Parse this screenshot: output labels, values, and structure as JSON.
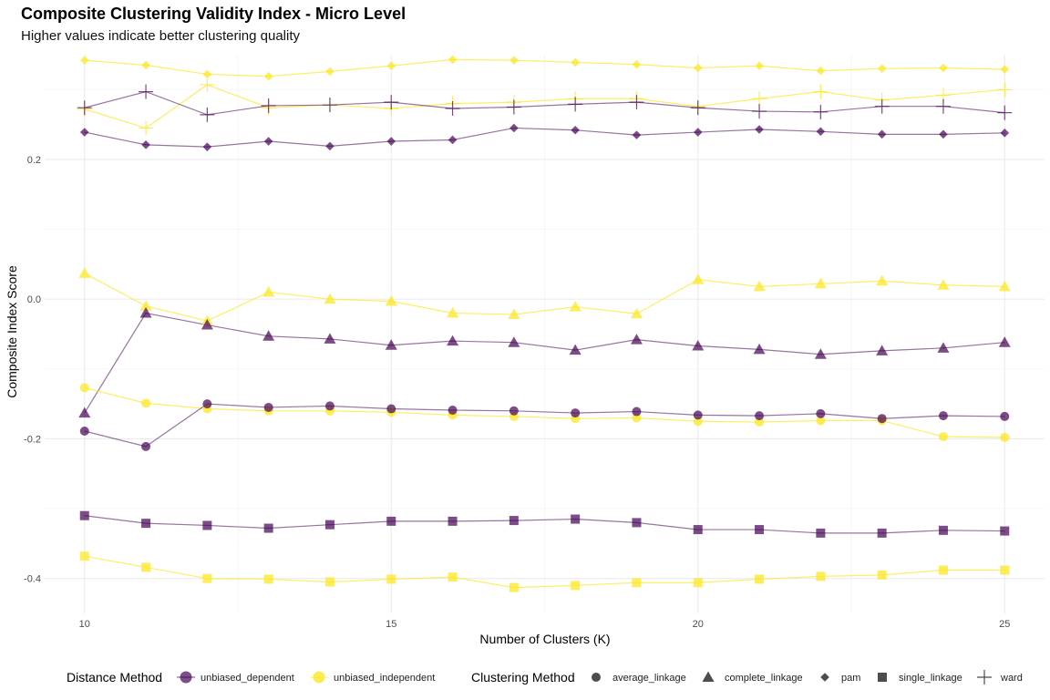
{
  "chart_data": {
    "type": "line",
    "title": "Composite Clustering Validity Index - Micro Level",
    "subtitle": "Higher values indicate better clustering quality",
    "xlabel": "Number of Clusters (K)",
    "ylabel": "Composite Index Score",
    "xlim": [
      9.35,
      25.65
    ],
    "ylim": [
      -0.45,
      0.35
    ],
    "x_ticks": [
      10,
      15,
      20,
      25
    ],
    "y_ticks": [
      -0.4,
      -0.2,
      0.0,
      0.2
    ],
    "y_tick_labels": [
      "-0.4",
      "-0.2",
      "0.0",
      "0.2"
    ],
    "grid": true,
    "legend_position": "bottom",
    "legends": {
      "distance": {
        "title": "Distance Method",
        "items": [
          {
            "label": "unbiased_dependent",
            "color": "#440154"
          },
          {
            "label": "unbiased_independent",
            "color": "#FDE725"
          }
        ]
      },
      "clustering": {
        "title": "Clustering Method",
        "items": [
          {
            "label": "average_linkage",
            "shape": "circle"
          },
          {
            "label": "complete_linkage",
            "shape": "triangle"
          },
          {
            "label": "pam",
            "shape": "diamond"
          },
          {
            "label": "single_linkage",
            "shape": "square"
          },
          {
            "label": "ward",
            "shape": "plus"
          }
        ]
      }
    },
    "x": [
      10,
      11,
      12,
      13,
      14,
      15,
      16,
      17,
      18,
      19,
      20,
      21,
      22,
      23,
      24,
      25
    ],
    "series": [
      {
        "distance": "unbiased_independent",
        "method": "pam",
        "color": "#FDE725",
        "shape": "diamond",
        "values": [
          0.342,
          0.335,
          0.322,
          0.319,
          0.326,
          0.334,
          0.343,
          0.342,
          0.339,
          0.336,
          0.331,
          0.334,
          0.327,
          0.33,
          0.331,
          0.329
        ]
      },
      {
        "distance": "unbiased_independent",
        "method": "ward",
        "color": "#FDE725",
        "shape": "plus",
        "values": [
          0.272,
          0.245,
          0.307,
          0.274,
          0.278,
          0.273,
          0.28,
          0.282,
          0.287,
          0.287,
          0.276,
          0.287,
          0.297,
          0.285,
          0.292,
          0.3
        ]
      },
      {
        "distance": "unbiased_dependent",
        "method": "ward",
        "color": "#440154",
        "shape": "plus",
        "values": [
          0.274,
          0.297,
          0.264,
          0.277,
          0.278,
          0.282,
          0.273,
          0.275,
          0.279,
          0.282,
          0.274,
          0.269,
          0.268,
          0.276,
          0.276,
          0.267
        ]
      },
      {
        "distance": "unbiased_dependent",
        "method": "pam",
        "color": "#440154",
        "shape": "diamond",
        "values": [
          0.239,
          0.221,
          0.218,
          0.226,
          0.219,
          0.226,
          0.228,
          0.245,
          0.242,
          0.235,
          0.239,
          0.243,
          0.24,
          0.236,
          0.236,
          0.238
        ]
      },
      {
        "distance": "unbiased_independent",
        "method": "complete_linkage",
        "color": "#FDE725",
        "shape": "triangle",
        "values": [
          0.037,
          -0.01,
          -0.031,
          0.01,
          0.0,
          -0.003,
          -0.02,
          -0.022,
          -0.011,
          -0.021,
          0.028,
          0.018,
          0.022,
          0.026,
          0.02,
          0.018
        ]
      },
      {
        "distance": "unbiased_dependent",
        "method": "complete_linkage",
        "color": "#440154",
        "shape": "triangle",
        "values": [
          -0.163,
          -0.02,
          -0.037,
          -0.053,
          -0.057,
          -0.066,
          -0.06,
          -0.062,
          -0.073,
          -0.058,
          -0.067,
          -0.072,
          -0.079,
          -0.074,
          -0.07,
          -0.062
        ]
      },
      {
        "distance": "unbiased_independent",
        "method": "average_linkage",
        "color": "#FDE725",
        "shape": "circle",
        "values": [
          -0.127,
          -0.149,
          -0.157,
          -0.16,
          -0.16,
          -0.162,
          -0.166,
          -0.168,
          -0.171,
          -0.17,
          -0.175,
          -0.176,
          -0.174,
          -0.174,
          -0.197,
          -0.198
        ]
      },
      {
        "distance": "unbiased_dependent",
        "method": "average_linkage",
        "color": "#440154",
        "shape": "circle",
        "values": [
          -0.189,
          -0.211,
          -0.15,
          -0.155,
          -0.153,
          -0.157,
          -0.159,
          -0.16,
          -0.163,
          -0.161,
          -0.166,
          -0.167,
          -0.164,
          -0.171,
          -0.167,
          -0.168
        ]
      },
      {
        "distance": "unbiased_dependent",
        "method": "single_linkage",
        "color": "#440154",
        "shape": "square",
        "values": [
          -0.31,
          -0.321,
          -0.324,
          -0.328,
          -0.323,
          -0.318,
          -0.318,
          -0.317,
          -0.315,
          -0.32,
          -0.33,
          -0.33,
          -0.335,
          -0.335,
          -0.331,
          -0.332
        ]
      },
      {
        "distance": "unbiased_independent",
        "method": "single_linkage",
        "color": "#FDE725",
        "shape": "square",
        "values": [
          -0.368,
          -0.384,
          -0.4,
          -0.401,
          -0.405,
          -0.401,
          -0.398,
          -0.413,
          -0.41,
          -0.406,
          -0.406,
          -0.401,
          -0.397,
          -0.395,
          -0.388,
          -0.388
        ]
      }
    ]
  }
}
